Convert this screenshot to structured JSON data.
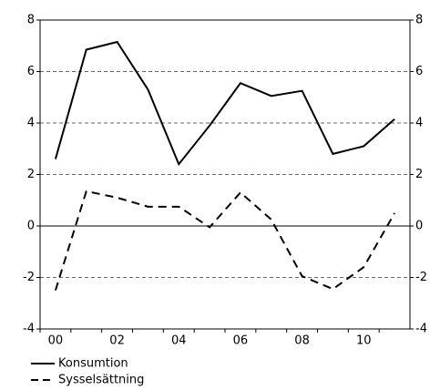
{
  "chart_data": {
    "type": "line",
    "categories": [
      "00",
      null,
      "02",
      null,
      "04",
      null,
      "06",
      null,
      "08",
      null,
      "10",
      null
    ],
    "series": [
      {
        "name": "Konsumtion",
        "color": "#000000",
        "dash": "solid",
        "values": [
          2.6,
          6.85,
          7.15,
          5.3,
          2.4,
          3.9,
          5.55,
          5.05,
          5.25,
          2.8,
          3.1,
          4.15
        ]
      },
      {
        "name": "Sysselsättning",
        "color": "#000000",
        "dash": "dashed",
        "values": [
          -2.5,
          1.35,
          1.1,
          0.75,
          0.75,
          -0.05,
          1.3,
          0.25,
          -1.95,
          -2.45,
          -1.6,
          0.5
        ]
      }
    ],
    "ylim": [
      -4,
      8
    ],
    "yticks": [
      -4,
      -2,
      0,
      2,
      4,
      6,
      8
    ],
    "y2lim": [
      -4,
      8
    ],
    "y2ticks": [
      -4,
      -2,
      0,
      2,
      4,
      6,
      8
    ],
    "grid": true,
    "legend": "bottom-left"
  }
}
